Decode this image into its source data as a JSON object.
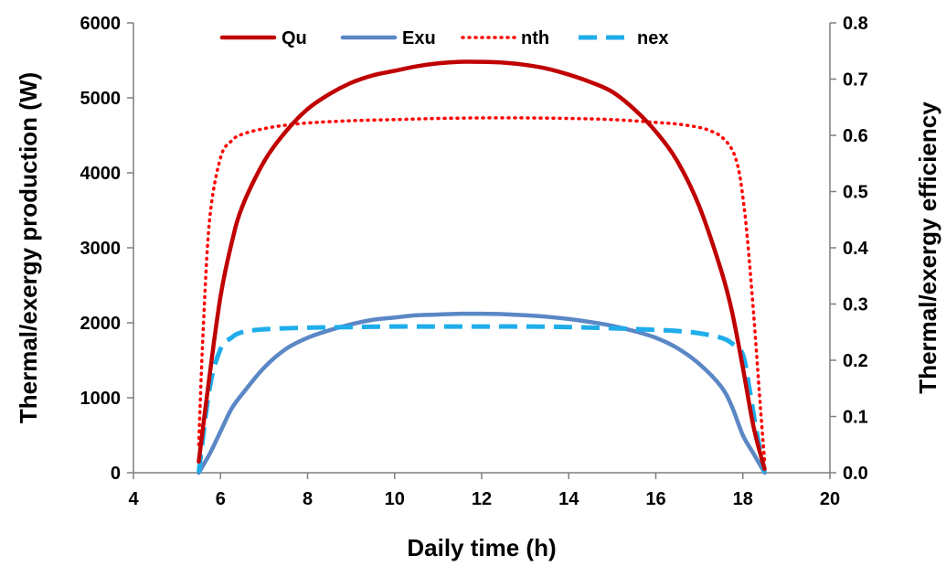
{
  "chart_data": {
    "type": "line",
    "title": "",
    "xlabel": "Daily time (h)",
    "ylabel_left": "Thermal/exergy production (W)",
    "ylabel_right": "Thermal/exergy efficiency",
    "xlim": [
      4,
      20
    ],
    "ylim_left": [
      0,
      6000
    ],
    "ylim_right": [
      0,
      0.8
    ],
    "x_ticks": [
      "4",
      "6",
      "8",
      "10",
      "12",
      "14",
      "16",
      "18",
      "20"
    ],
    "y_left_ticks": [
      "0",
      "1000",
      "2000",
      "3000",
      "4000",
      "5000",
      "6000"
    ],
    "y_right_ticks": [
      "0.0",
      "0.1",
      "0.2",
      "0.3",
      "0.4",
      "0.5",
      "0.6",
      "0.7",
      "0.8"
    ],
    "grid": false,
    "legend_position": "top",
    "series": [
      {
        "name": "Qu",
        "axis": "left",
        "color": "#c00000",
        "style": "solid",
        "x": [
          5.5,
          5.75,
          6.0,
          6.25,
          6.5,
          7.0,
          7.5,
          8.0,
          8.5,
          9.0,
          9.5,
          10.0,
          10.5,
          11.0,
          11.5,
          12.0,
          12.5,
          13.0,
          13.5,
          14.0,
          14.5,
          15.0,
          15.5,
          16.0,
          16.5,
          17.0,
          17.5,
          17.75,
          18.0,
          18.25,
          18.5
        ],
        "values": [
          150,
          1300,
          2350,
          3050,
          3550,
          4150,
          4550,
          4850,
          5050,
          5200,
          5300,
          5360,
          5420,
          5460,
          5480,
          5480,
          5470,
          5440,
          5390,
          5310,
          5210,
          5080,
          4850,
          4550,
          4150,
          3550,
          2700,
          2150,
          1400,
          600,
          50
        ]
      },
      {
        "name": "Exu",
        "axis": "left",
        "color": "#5b87c5",
        "style": "solid",
        "x": [
          5.5,
          5.75,
          6.0,
          6.25,
          6.5,
          7.0,
          7.5,
          8.0,
          8.5,
          9.0,
          9.5,
          10.0,
          10.5,
          11.0,
          11.5,
          12.0,
          12.5,
          13.0,
          13.5,
          14.0,
          14.5,
          15.0,
          15.5,
          16.0,
          16.5,
          17.0,
          17.5,
          17.75,
          18.0,
          18.25,
          18.5
        ],
        "values": [
          0,
          250,
          550,
          850,
          1050,
          1400,
          1650,
          1800,
          1900,
          1980,
          2040,
          2070,
          2100,
          2110,
          2120,
          2120,
          2115,
          2100,
          2080,
          2050,
          2010,
          1960,
          1890,
          1800,
          1660,
          1450,
          1150,
          880,
          500,
          250,
          0
        ]
      },
      {
        "name": "nth",
        "axis": "right",
        "color": "#ff0000",
        "style": "dotted",
        "x": [
          5.5,
          5.6,
          5.75,
          6.0,
          6.25,
          6.5,
          7.0,
          7.5,
          8.0,
          9.0,
          10.0,
          11.0,
          12.0,
          13.0,
          14.0,
          15.0,
          16.0,
          16.5,
          17.0,
          17.25,
          17.5,
          17.75,
          17.9,
          18.0,
          18.1,
          18.25,
          18.4,
          18.5
        ],
        "values": [
          0.05,
          0.25,
          0.45,
          0.56,
          0.59,
          0.602,
          0.612,
          0.618,
          0.622,
          0.626,
          0.628,
          0.63,
          0.631,
          0.631,
          0.63,
          0.628,
          0.623,
          0.62,
          0.614,
          0.608,
          0.598,
          0.575,
          0.54,
          0.49,
          0.42,
          0.28,
          0.12,
          0.02
        ]
      },
      {
        "name": "nex",
        "axis": "right",
        "color": "#1fadeb",
        "style": "dashed",
        "x": [
          5.5,
          5.75,
          6.0,
          6.25,
          6.5,
          7.0,
          8.0,
          9.0,
          10.0,
          11.0,
          12.0,
          13.0,
          14.0,
          15.0,
          16.0,
          16.5,
          17.0,
          17.5,
          17.75,
          18.0,
          18.15,
          18.3,
          18.5
        ],
        "values": [
          0.0,
          0.15,
          0.22,
          0.24,
          0.25,
          0.255,
          0.258,
          0.259,
          0.26,
          0.26,
          0.26,
          0.26,
          0.259,
          0.257,
          0.254,
          0.252,
          0.248,
          0.24,
          0.23,
          0.21,
          0.15,
          0.08,
          0.0
        ]
      }
    ]
  }
}
